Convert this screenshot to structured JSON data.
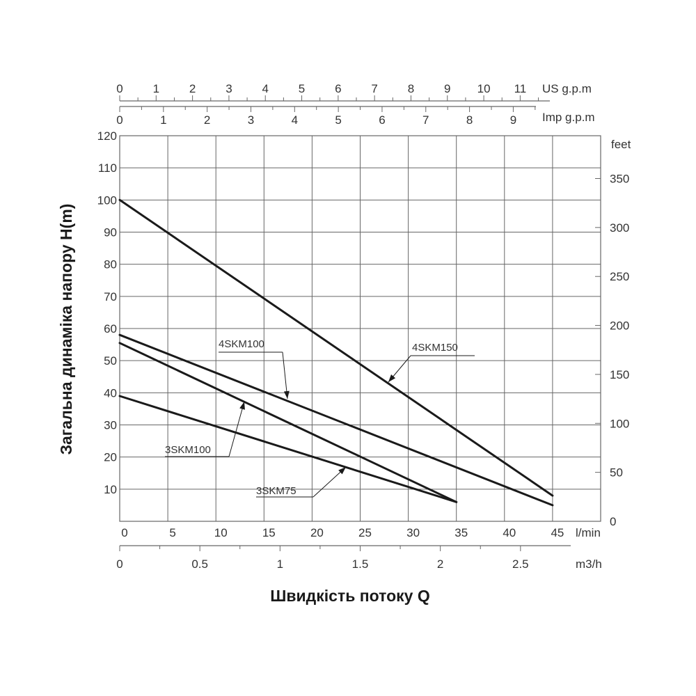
{
  "chart_data": {
    "type": "line",
    "title": "",
    "xlabel": "Швидкість потоку Q",
    "ylabel": "Загальна динаміка напору H(m)",
    "x_unit": "l/min",
    "xlim": [
      0,
      50
    ],
    "ylim": [
      0,
      120
    ],
    "x_ticks": [
      0,
      5,
      10,
      15,
      20,
      25,
      30,
      35,
      40,
      45
    ],
    "y_ticks": [
      10,
      20,
      30,
      40,
      50,
      60,
      70,
      80,
      90,
      100,
      110,
      120
    ],
    "grid": true,
    "series": [
      {
        "name": "4SKM150",
        "x": [
          0,
          45
        ],
        "y": [
          100,
          8
        ]
      },
      {
        "name": "4SKM100",
        "x": [
          0,
          45
        ],
        "y": [
          58,
          5
        ]
      },
      {
        "name": "3SKM100",
        "x": [
          0,
          35
        ],
        "y": [
          55.5,
          6
        ]
      },
      {
        "name": "3SKM75",
        "x": [
          0,
          35
        ],
        "y": [
          39,
          6
        ]
      }
    ],
    "secondary_axes": {
      "us_gpm": {
        "unit": "US g.p.m",
        "ticks": [
          0,
          1,
          2,
          3,
          4,
          5,
          6,
          7,
          8,
          9,
          10,
          11
        ]
      },
      "imp_gpm": {
        "unit": "Imp g.p.m",
        "ticks": [
          0,
          1,
          2,
          3,
          4,
          5,
          6,
          7,
          8,
          9
        ]
      },
      "m3h": {
        "unit": "m3/h",
        "ticks": [
          0,
          0.5,
          1,
          1.5,
          2,
          2.5
        ]
      },
      "feet": {
        "unit": "feet",
        "ticks": [
          0,
          50,
          100,
          150,
          200,
          250,
          300,
          350
        ]
      }
    },
    "line_color": "#1a1a1a",
    "grid_color": "#666666"
  }
}
